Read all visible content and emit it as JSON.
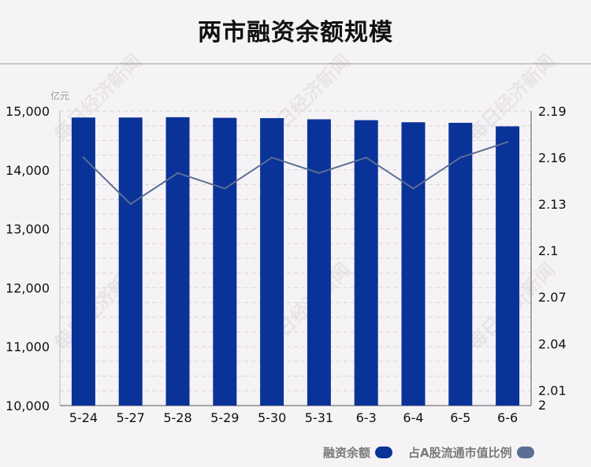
{
  "title": "两市融资余额规模",
  "watermark": "每日经济新闻",
  "colors": {
    "bar": "#0a3399",
    "line": "#5b6e93",
    "grid": "#d8d4d8",
    "axis_text": "#111111",
    "unit_text": "#9a9a9a"
  },
  "legend": {
    "bar_label": "融资余额",
    "line_label": "占A股流通市值比例"
  },
  "chart_data": {
    "type": "bar",
    "title": "两市融资余额规模",
    "categories": [
      "5-24",
      "5-27",
      "5-28",
      "5-29",
      "5-30",
      "5-31",
      "6-3",
      "6-4",
      "6-5",
      "6-6"
    ],
    "left_axis": {
      "unit": "亿元",
      "ylim": [
        10000,
        15000
      ],
      "ticks": [
        "10,000",
        "11,000",
        "12,000",
        "13,000",
        "14,000",
        "15,000"
      ]
    },
    "right_axis": {
      "ylim": [
        2.0,
        2.19
      ],
      "ticks": [
        "2",
        "2.01",
        "2.04",
        "2.07",
        "2.1",
        "2.13",
        "2.16",
        "2.19"
      ]
    },
    "series": [
      {
        "name": "融资余额",
        "type": "bar",
        "axis": "left",
        "values": [
          14890,
          14890,
          14895,
          14885,
          14880,
          14860,
          14845,
          14810,
          14800,
          14740
        ]
      },
      {
        "name": "占A股流通市值比例",
        "type": "line",
        "axis": "right",
        "values": [
          2.16,
          2.13,
          2.15,
          2.14,
          2.16,
          2.15,
          2.16,
          2.14,
          2.16,
          2.17
        ]
      }
    ],
    "grid": true,
    "legend_position": "bottom-right"
  }
}
